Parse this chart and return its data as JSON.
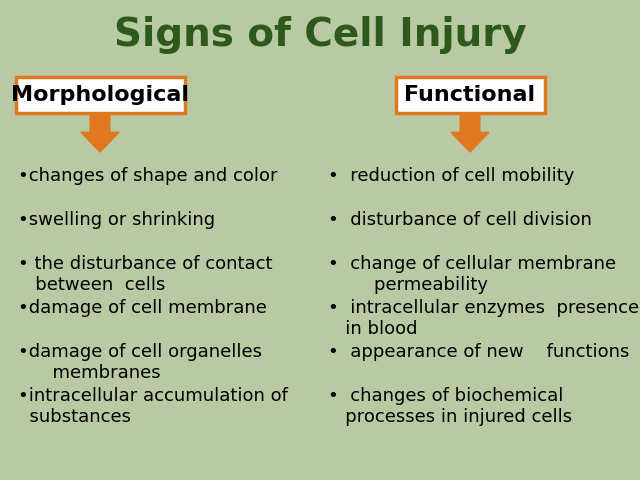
{
  "title": "Signs of Cell Injury",
  "title_color": "#2d5a1b",
  "title_fontsize": 28,
  "background_color": "#b8c9a3",
  "left_header": "Morphological",
  "right_header": "Functional",
  "header_box_color": "#ffffff",
  "header_box_edgecolor": "#e07820",
  "header_text_color": "#000000",
  "header_fontsize": 16,
  "arrow_color": "#e07820",
  "bullet_color": "#000000",
  "bullet_fontsize": 13,
  "left_bullets": [
    "•changes of shape and color",
    "•swelling or shrinking",
    "• the disturbance of contact\n   between  cells",
    "•damage of cell membrane",
    "•damage of cell organelles\n      membranes",
    "•intracellular accumulation of\n  substances"
  ],
  "right_bullets": [
    "•  reduction of cell mobility",
    "•  disturbance of cell division",
    "•  change of cellular membrane\n        permeability",
    "•  intracellular enzymes  presence\n   in blood",
    "•  appearance of new    functions",
    "•  changes of biochemical\n   processes in injured cells"
  ]
}
